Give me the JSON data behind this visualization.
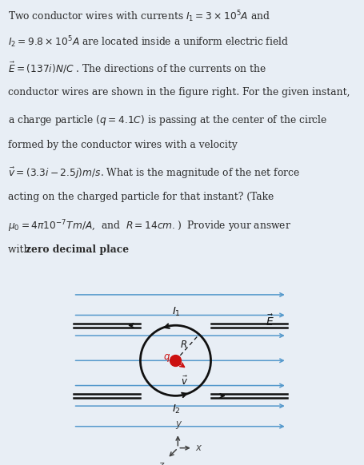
{
  "background_color": "#e8eef5",
  "text_color": "#2c2c2c",
  "blue_line_color": "#5599cc",
  "black_wire_color": "#111111",
  "circle_color": "#111111",
  "red_dot_color": "#cc1111",
  "fig_width": 4.56,
  "fig_height": 5.82,
  "dpi": 100,
  "text_region": [
    0.01,
    0.415,
    0.99,
    0.575
  ],
  "diag_region": [
    0.0,
    0.0,
    1.0,
    0.415
  ]
}
